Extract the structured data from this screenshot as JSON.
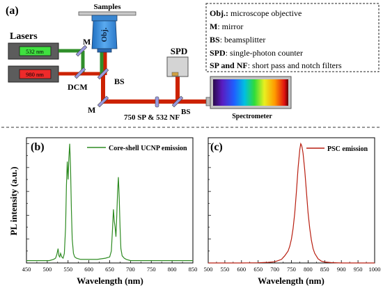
{
  "panel_a": {
    "tag": "(a)",
    "lasers_label": "Lasers",
    "laser_532_label": "532 nm",
    "laser_980_label": "980 nm",
    "samples_label": "Samples",
    "objective_label": "Obj.",
    "dcm_label": "DCM",
    "mirror_label_1": "M",
    "mirror_label_2": "M",
    "bs_label_1": "BS",
    "bs_label_2": "BS",
    "filters_label": "750 SP & 532 NF",
    "spd_label": "SPD",
    "spectrometer_label": "Spectrometer",
    "legend": [
      {
        "abbr": "Obj.:",
        "text": " microscope objective"
      },
      {
        "abbr": "M",
        "text": ": mirror"
      },
      {
        "abbr": "BS",
        "text": ": beamsplitter"
      },
      {
        "abbr": "SPD",
        "text": ": single-photon counter"
      },
      {
        "abbr": "SP and NF",
        "text": ": short pass and notch filters"
      }
    ],
    "colors": {
      "green_beam": "#2f8f2a",
      "red_beam": "#cc2200",
      "objective": "#3c8fd8",
      "splitter": "#9a9ae0"
    }
  },
  "chart_data": [
    {
      "type": "line",
      "panel": "(b)",
      "xlabel": "Wavelength (nm)",
      "ylabel": "PL intensity (a.u.)",
      "xlim": [
        450,
        850
      ],
      "ylim": [
        0,
        1.05
      ],
      "x_ticks": [
        "450",
        "500",
        "550",
        "600",
        "650",
        "700",
        "750",
        "800",
        "850"
      ],
      "y_ticks_labeled": false,
      "color": "#2e8b22",
      "legend_position": "top-right",
      "series": [
        {
          "name": "Core-shell UCNP emission",
          "x": [
            450,
            470,
            490,
            505,
            515,
            520,
            523,
            526,
            528,
            530,
            532,
            535,
            538,
            541,
            544,
            546,
            548,
            550,
            552,
            554,
            556,
            558,
            560,
            563,
            566,
            570,
            580,
            600,
            620,
            640,
            650,
            654,
            657,
            659,
            661,
            663,
            665,
            667,
            669,
            671,
            673,
            675,
            677,
            680,
            685,
            690,
            700,
            720,
            750,
            800,
            850
          ],
          "y": [
            0.02,
            0.02,
            0.02,
            0.02,
            0.03,
            0.04,
            0.07,
            0.12,
            0.06,
            0.05,
            0.08,
            0.05,
            0.04,
            0.08,
            0.3,
            0.65,
            0.85,
            0.7,
            0.88,
            1.0,
            0.8,
            0.45,
            0.2,
            0.08,
            0.05,
            0.04,
            0.03,
            0.03,
            0.03,
            0.04,
            0.05,
            0.1,
            0.3,
            0.45,
            0.35,
            0.3,
            0.22,
            0.4,
            0.6,
            0.72,
            0.55,
            0.3,
            0.12,
            0.06,
            0.04,
            0.03,
            0.02,
            0.02,
            0.02,
            0.02,
            0.02
          ]
        }
      ]
    },
    {
      "type": "line",
      "panel": "(c)",
      "xlabel": "Wavelength (nm)",
      "ylabel": "",
      "xlim": [
        500,
        1000
      ],
      "ylim": [
        0,
        1.05
      ],
      "x_ticks": [
        "500",
        "550",
        "600",
        "650",
        "700",
        "750",
        "800",
        "850",
        "900",
        "950",
        "1000"
      ],
      "y_ticks_labeled": false,
      "color": "#b81e10",
      "legend_position": "top-right",
      "series": [
        {
          "name": "PSC emission",
          "x": [
            500,
            550,
            600,
            650,
            680,
            700,
            720,
            730,
            740,
            745,
            750,
            755,
            760,
            765,
            770,
            775,
            778,
            780,
            782,
            785,
            790,
            795,
            800,
            805,
            810,
            815,
            820,
            830,
            840,
            850,
            870,
            900,
            950,
            1000
          ],
          "y": [
            0.0,
            0.0,
            0.0,
            0.002,
            0.005,
            0.01,
            0.03,
            0.06,
            0.1,
            0.14,
            0.2,
            0.29,
            0.42,
            0.6,
            0.8,
            0.95,
            1.0,
            0.99,
            0.97,
            0.92,
            0.78,
            0.6,
            0.42,
            0.29,
            0.19,
            0.12,
            0.08,
            0.035,
            0.015,
            0.008,
            0.003,
            0.0,
            0.0,
            0.0
          ]
        }
      ]
    }
  ]
}
